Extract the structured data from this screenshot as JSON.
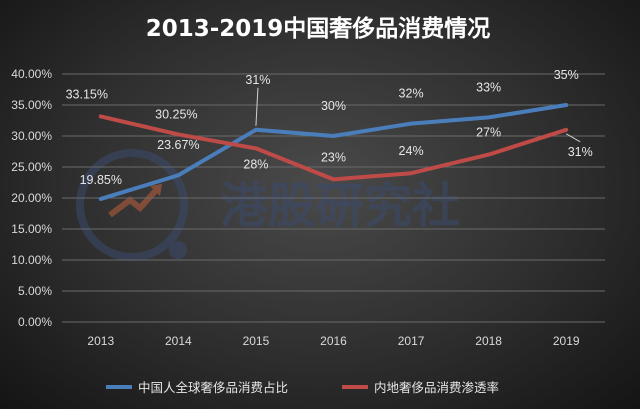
{
  "chart_data": {
    "type": "line",
    "title": "2013-2019中国奢侈品消费情况",
    "categories": [
      "2013",
      "2014",
      "2015",
      "2016",
      "2017",
      "2018",
      "2019"
    ],
    "y_ticks": [
      "0.00%",
      "5.00%",
      "10.00%",
      "15.00%",
      "20.00%",
      "25.00%",
      "30.00%",
      "35.00%",
      "40.00%"
    ],
    "ylim": [
      0,
      40
    ],
    "grid": true,
    "legend_position": "bottom",
    "series": [
      {
        "name": "中国人全球奢侈品消费占比",
        "color": "#4a7ebb",
        "values": [
          19.85,
          23.67,
          31,
          30,
          32,
          33,
          35
        ],
        "labels": [
          "19.85%",
          "23.67%",
          "31%",
          "30%",
          "32%",
          "33%",
          "35%"
        ]
      },
      {
        "name": "内地奢侈品消费渗透率",
        "color": "#be4b48",
        "values": [
          33.15,
          30.25,
          28,
          23,
          24,
          27,
          31
        ],
        "labels": [
          "33.15%",
          "30.25%",
          "28%",
          "23%",
          "24%",
          "27%",
          "31%"
        ]
      }
    ]
  },
  "watermark": {
    "text": "港股研究社",
    "color": "#3b4a6e",
    "icon": "trend-arrow-logo-icon"
  }
}
